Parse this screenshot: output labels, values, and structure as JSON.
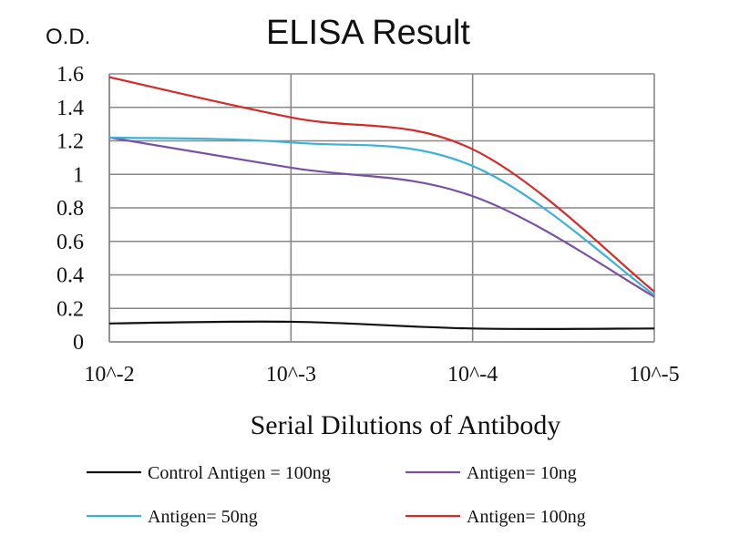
{
  "chart_data": {
    "type": "line",
    "title": "ELISA Result",
    "ylabel": "O.D.",
    "xlabel": "Serial  Dilutions  of Antibody",
    "categories": [
      "10^-2",
      "10^-3",
      "10^-4",
      "10^-5"
    ],
    "ylim": [
      0,
      1.6
    ],
    "yticks": [
      0,
      0.2,
      0.4,
      0.6,
      0.8,
      1,
      1.2,
      1.4,
      1.6
    ],
    "ytick_labels": [
      "0",
      "0.2",
      "0.4",
      "0.6",
      "0.8",
      "1",
      "1.2",
      "1.4",
      "1.6"
    ],
    "grid": true,
    "legend_position": "bottom",
    "series": [
      {
        "name": "Control Antigen = 100ng",
        "color": "#111111",
        "values": [
          0.11,
          0.12,
          0.08,
          0.08
        ]
      },
      {
        "name": "Antigen= 10ng",
        "color": "#7b4fa3",
        "values": [
          1.22,
          1.04,
          0.87,
          0.27
        ]
      },
      {
        "name": "Antigen= 50ng",
        "color": "#3eb1d8",
        "values": [
          1.22,
          1.19,
          1.05,
          0.28
        ]
      },
      {
        "name": "Antigen= 100ng",
        "color": "#d42a2a",
        "values": [
          1.58,
          1.34,
          1.15,
          0.3
        ]
      }
    ]
  }
}
